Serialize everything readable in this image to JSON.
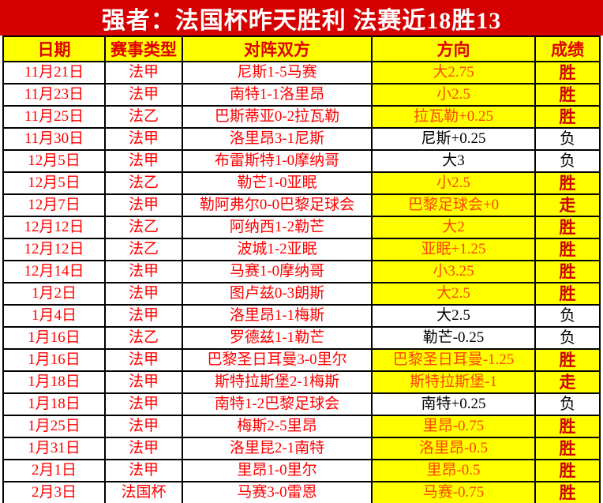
{
  "banner": {
    "title": "强者：法国杯昨天胜利 法赛近18胜13"
  },
  "colors": {
    "banner_background": "#d60000",
    "banner_text": "#ffffff",
    "highlight_yellow": "#ffff00",
    "table_text_red": "#ff0000",
    "direction_win_text": "#ff4500",
    "result_win_text": "#cc0000",
    "loss_text": "#000000",
    "grid_line": "#000000"
  },
  "table": {
    "headers": [
      "日期",
      "赛事类型",
      "对阵双方",
      "方向",
      "成绩"
    ],
    "rows": [
      {
        "date": "11月21日",
        "league": "法甲",
        "match": "尼斯1-5马赛",
        "direction": "大2.75",
        "result": "胜",
        "outcome": "win"
      },
      {
        "date": "11月23日",
        "league": "法甲",
        "match": "南特1-1洛里昂",
        "direction": "小2.5",
        "result": "胜",
        "outcome": "win"
      },
      {
        "date": "11月25日",
        "league": "法乙",
        "match": "巴斯蒂亚0-2拉瓦勒",
        "direction": "拉瓦勒+0.25",
        "result": "胜",
        "outcome": "win"
      },
      {
        "date": "11月30日",
        "league": "法甲",
        "match": "洛里昂3-1尼斯",
        "direction": "尼斯+0.25",
        "result": "负",
        "outcome": "loss"
      },
      {
        "date": "12月5日",
        "league": "法甲",
        "match": "布雷斯特1-0摩纳哥",
        "direction": "大3",
        "result": "负",
        "outcome": "loss"
      },
      {
        "date": "12月5日",
        "league": "法乙",
        "match": "勒芒1-0亚眠",
        "direction": "小2.5",
        "result": "胜",
        "outcome": "win"
      },
      {
        "date": "12月7日",
        "league": "法甲",
        "match": "勒阿弗尔0-0巴黎足球会",
        "direction": "巴黎足球会+0",
        "result": "走",
        "outcome": "push"
      },
      {
        "date": "12月12日",
        "league": "法乙",
        "match": "阿纳西1-2勒芒",
        "direction": "大2",
        "result": "胜",
        "outcome": "win"
      },
      {
        "date": "12月12日",
        "league": "法乙",
        "match": "波城1-2亚眠",
        "direction": "亚眠+1.25",
        "result": "胜",
        "outcome": "win"
      },
      {
        "date": "12月14日",
        "league": "法甲",
        "match": "马赛1-0摩纳哥",
        "direction": "小3.25",
        "result": "胜",
        "outcome": "win"
      },
      {
        "date": "1月2日",
        "league": "法甲",
        "match": "图卢兹0-3朗斯",
        "direction": "大2.5",
        "result": "胜",
        "outcome": "win"
      },
      {
        "date": "1月4日",
        "league": "法甲",
        "match": "洛里昂1-1梅斯",
        "direction": "大2.5",
        "result": "负",
        "outcome": "loss"
      },
      {
        "date": "1月16日",
        "league": "法乙",
        "match": "罗德兹1-1勒芒",
        "direction": "勒芒-0.25",
        "result": "负",
        "outcome": "loss"
      },
      {
        "date": "1月16日",
        "league": "法甲",
        "match": "巴黎圣日耳曼3-0里尔",
        "direction": "巴黎圣日耳曼-1.25",
        "result": "胜",
        "outcome": "win"
      },
      {
        "date": "1月18日",
        "league": "法甲",
        "match": "斯特拉斯堡2-1梅斯",
        "direction": "斯特拉斯堡-1",
        "result": "走",
        "outcome": "push"
      },
      {
        "date": "1月18日",
        "league": "法甲",
        "match": "南特1-2巴黎足球会",
        "direction": "南特+0.25",
        "result": "负",
        "outcome": "loss"
      },
      {
        "date": "1月25日",
        "league": "法甲",
        "match": "梅斯2-5里昂",
        "direction": "里昂-0.75",
        "result": "胜",
        "outcome": "win"
      },
      {
        "date": "1月31日",
        "league": "法甲",
        "match": "洛里昆2-1南特",
        "direction": "洛里昂-0.5",
        "result": "胜",
        "outcome": "win"
      },
      {
        "date": "2月1日",
        "league": "法甲",
        "match": "里昂1-0里尔",
        "direction": "里昂-0.5",
        "result": "胜",
        "outcome": "win"
      },
      {
        "date": "2月3日",
        "league": "法国杯",
        "match": "马赛3-0雷恩",
        "direction": "马赛-0.75",
        "result": "胜",
        "outcome": "win"
      }
    ]
  }
}
